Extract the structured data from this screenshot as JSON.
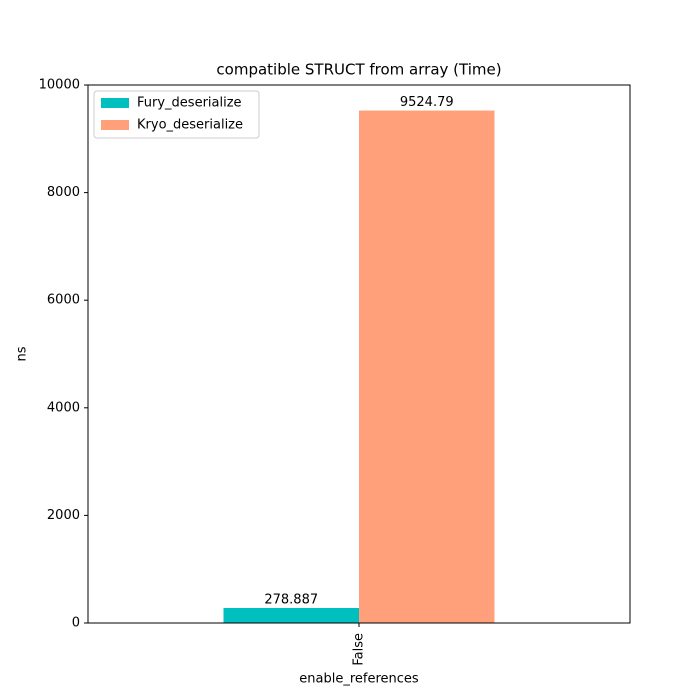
{
  "chart_data": {
    "type": "bar",
    "title": "compatible STRUCT from array (Time)",
    "x_label": "enable_references",
    "y_label": "ns",
    "categories": [
      "False"
    ],
    "series": [
      {
        "name": "Fury_deserialize",
        "color": "#00bfbf",
        "values": [
          278.887
        ]
      },
      {
        "name": "Kryo_deserialize",
        "color": "#ffa07a",
        "values": [
          9524.79
        ]
      }
    ],
    "ylim": [
      0,
      10000
    ],
    "yticks": [
      0,
      2000,
      4000,
      6000,
      8000,
      10000
    ],
    "legend": "upper left"
  }
}
